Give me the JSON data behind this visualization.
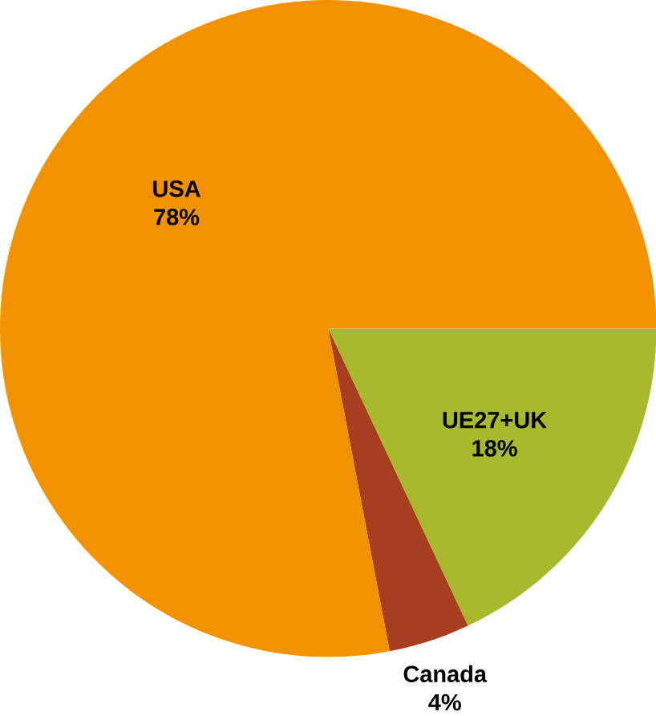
{
  "chart_data": {
    "type": "pie",
    "categories": [
      "UE27+UK",
      "Canada",
      "USA"
    ],
    "values": [
      18,
      4,
      78
    ],
    "value_labels": [
      "18%",
      "4%",
      "78%"
    ],
    "colors": [
      "#a8b92b",
      "#a83e1f",
      "#f39200"
    ]
  }
}
